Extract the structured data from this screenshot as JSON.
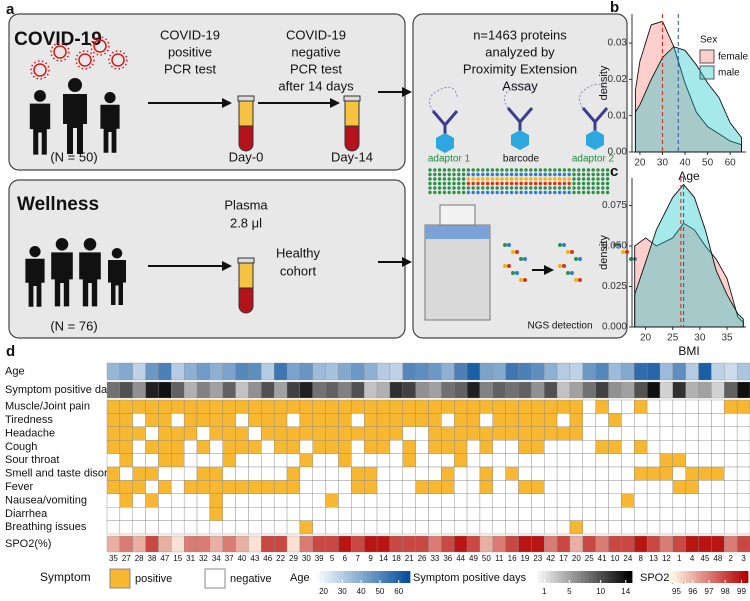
{
  "diagram": {
    "label": "a",
    "covid": {
      "title": "COVID-19",
      "n": "(N = 50)",
      "positive_test": [
        "COVID-19",
        "positive",
        "PCR test"
      ],
      "negative_test": [
        "COVID-19",
        "negative",
        "PCR test",
        "after 14 days"
      ],
      "day0": "Day-0",
      "day14": "Day-14"
    },
    "wellness": {
      "title": "Wellness",
      "n": "(N = 76)",
      "sample": [
        "Plasma",
        "2.8 μl"
      ],
      "cohort": [
        "Healthy",
        "cohort"
      ]
    },
    "assay": {
      "description": [
        "n=1463 proteins",
        "analyzed by",
        "Proximity Extension",
        "Assay"
      ],
      "adaptor_1": "adaptor 1",
      "barcode": "barcode",
      "adaptor_2": "adaptor 2",
      "detection": "NGS detection"
    }
  },
  "chart_data": [
    {
      "type": "density",
      "label": "b",
      "x_label": "Age",
      "y_label": "density",
      "legend_title": "Sex",
      "x": [
        18,
        20,
        25,
        30,
        35,
        40,
        45,
        50,
        55,
        60,
        65
      ],
      "series": [
        {
          "name": "female",
          "color": "#f8766d",
          "mean_color": "#d7301f",
          "mean": 30,
          "values": [
            0.017,
            0.025,
            0.035,
            0.036,
            0.029,
            0.019,
            0.011,
            0.007,
            0.005,
            0.003,
            0.002
          ]
        },
        {
          "name": "male",
          "color": "#00bfc4",
          "mean_color": "#3b5ba5",
          "mean": 37,
          "values": [
            0.011,
            0.013,
            0.02,
            0.026,
            0.029,
            0.028,
            0.024,
            0.019,
            0.015,
            0.008,
            0.004
          ]
        }
      ],
      "xlim": [
        16.5,
        67
      ],
      "xticks": [
        20,
        30,
        40,
        50,
        60
      ],
      "ylim": [
        0,
        0.038
      ],
      "yticks": [
        {
          "value": 0,
          "label": "0.00"
        },
        0.01,
        0.02,
        0.03
      ]
    },
    {
      "type": "density",
      "label": "c",
      "x_label": "BMI",
      "y_label": "density",
      "x": [
        18,
        20,
        22,
        25,
        27,
        29,
        31,
        33,
        35,
        37,
        38
      ],
      "series": [
        {
          "name": "female",
          "color": "#f8766d",
          "mean_color": "#d7301f",
          "mean": 26.5,
          "values": [
            0.05,
            0.055,
            0.05,
            0.055,
            0.064,
            0.06,
            0.05,
            0.042,
            0.03,
            0.006,
            0.003
          ]
        },
        {
          "name": "male",
          "color": "#00bfc4",
          "mean_color": "#3b5ba5",
          "mean": 27,
          "values": [
            0.02,
            0.04,
            0.06,
            0.08,
            0.088,
            0.08,
            0.06,
            0.035,
            0.02,
            0.008,
            0.005
          ]
        }
      ],
      "xlim": [
        17.5,
        38.5
      ],
      "xticks": [
        20,
        25,
        30,
        35
      ],
      "ylim": [
        0,
        0.092
      ],
      "yticks": [
        {
          "value": 0,
          "label": "0.000"
        },
        0.025,
        {
          "value": 0.05,
          "label": "0.050"
        },
        0.075
      ]
    },
    {
      "type": "heatmap",
      "label": "d",
      "categories": [
        "35",
        "27",
        "28",
        "38",
        "47",
        "15",
        "31",
        "32",
        "34",
        "37",
        "40",
        "43",
        "46",
        "22",
        "29",
        "30",
        "39",
        "5",
        "6",
        "7",
        "9",
        "14",
        "18",
        "21",
        "26",
        "33",
        "36",
        "44",
        "49",
        "50",
        "11",
        "16",
        "19",
        "23",
        "42",
        "17",
        "20",
        "25",
        "41",
        "10",
        "24",
        "8",
        "13",
        "12",
        "1",
        "4",
        "45",
        "48",
        "2",
        "3"
      ],
      "scale_rows": [
        {
          "name": "Age",
          "lim": [
            16,
            66
          ],
          "ticks": [
            20,
            30,
            40,
            50,
            60
          ],
          "colors": [
            "#f7fbff",
            "#08519c"
          ],
          "values": [
            36,
            40,
            28,
            45,
            52,
            30,
            38,
            44,
            38,
            42,
            50,
            48,
            30,
            55,
            42,
            46,
            35,
            33,
            40,
            45,
            38,
            30,
            28,
            50,
            48,
            45,
            38,
            52,
            62,
            42,
            40,
            55,
            52,
            48,
            38,
            30,
            28,
            45,
            50,
            35,
            40,
            58,
            60,
            35,
            48,
            30,
            62,
            28,
            25,
            32
          ]
        },
        {
          "name": "Symptom positive days",
          "lim": [
            0,
            15
          ],
          "ticks": [
            1,
            5,
            10,
            14
          ],
          "colors": [
            "#f2f2f2",
            "#000000"
          ],
          "values": [
            8,
            10,
            6,
            13,
            14,
            9,
            4,
            7,
            5,
            9,
            3,
            6,
            10,
            5,
            11,
            13,
            8,
            9,
            7,
            10,
            3,
            4,
            12,
            11,
            6,
            5,
            8,
            9,
            13,
            7,
            9,
            8,
            9,
            6,
            10,
            3,
            5,
            8,
            11,
            6,
            5,
            10,
            14,
            2,
            12,
            4,
            5,
            2,
            9,
            14
          ]
        },
        {
          "name": "SPO2(%)",
          "lim": [
            94.6,
            99.4
          ],
          "ticks": [
            95,
            96,
            97,
            98,
            99
          ],
          "colors": [
            "#fff7e6",
            "#b30000"
          ],
          "values": [
            96,
            97,
            96,
            98,
            96,
            95,
            97,
            97,
            96,
            97,
            96,
            95,
            98,
            98,
            95,
            97,
            98,
            98,
            99,
            98,
            99,
            99,
            98,
            98,
            98,
            97,
            98,
            99,
            98,
            96,
            97,
            98,
            99,
            99,
            97,
            98,
            96,
            98,
            97,
            98,
            98,
            99,
            98,
            97,
            98,
            99,
            99,
            99,
            97,
            98
          ]
        }
      ],
      "symptoms": {
        "title": "Symptom",
        "levels": [
          "negative",
          "positive"
        ],
        "colors": [
          "#ffffff",
          "#f7b731"
        ],
        "series": [
          {
            "name": "Muscle/Joint pain",
            "values": [
              1,
              1,
              1,
              1,
              1,
              1,
              1,
              1,
              1,
              1,
              1,
              1,
              1,
              1,
              1,
              1,
              1,
              1,
              1,
              1,
              1,
              1,
              1,
              1,
              1,
              1,
              1,
              1,
              1,
              1,
              1,
              1,
              1,
              1,
              1,
              1,
              1,
              0,
              1,
              0,
              0,
              1,
              0,
              0,
              0,
              0,
              0,
              0,
              1,
              1
            ]
          },
          {
            "name": "Tiredness",
            "values": [
              1,
              1,
              0,
              1,
              1,
              0,
              1,
              1,
              1,
              1,
              0,
              1,
              1,
              1,
              0,
              1,
              1,
              1,
              1,
              0,
              1,
              1,
              1,
              1,
              1,
              1,
              0,
              1,
              1,
              0,
              1,
              1,
              1,
              1,
              1,
              0,
              1,
              0,
              0,
              1,
              0,
              0,
              0,
              0,
              0,
              0,
              0,
              0,
              0,
              0
            ]
          },
          {
            "name": "Headache",
            "values": [
              1,
              1,
              1,
              0,
              1,
              1,
              1,
              0,
              1,
              1,
              1,
              0,
              1,
              1,
              1,
              1,
              1,
              1,
              1,
              1,
              1,
              1,
              1,
              0,
              0,
              1,
              1,
              1,
              1,
              1,
              1,
              1,
              1,
              1,
              1,
              1,
              1,
              0,
              0,
              0,
              0,
              0,
              0,
              0,
              0,
              0,
              0,
              0,
              0,
              0
            ]
          },
          {
            "name": "Cough",
            "values": [
              1,
              1,
              0,
              1,
              1,
              1,
              0,
              1,
              0,
              1,
              1,
              1,
              0,
              1,
              1,
              0,
              1,
              1,
              1,
              0,
              1,
              1,
              0,
              1,
              0,
              1,
              1,
              1,
              0,
              1,
              0,
              0,
              1,
              1,
              0,
              0,
              0,
              0,
              1,
              1,
              0,
              1,
              0,
              0,
              0,
              0,
              0,
              0,
              0,
              0
            ]
          },
          {
            "name": "Sour throat",
            "values": [
              0,
              1,
              0,
              0,
              1,
              1,
              0,
              0,
              0,
              1,
              0,
              0,
              0,
              0,
              0,
              1,
              0,
              0,
              1,
              0,
              0,
              0,
              0,
              1,
              0,
              0,
              0,
              1,
              0,
              0,
              0,
              0,
              0,
              0,
              0,
              0,
              0,
              0,
              0,
              0,
              0,
              0,
              0,
              1,
              1,
              0,
              0,
              0,
              0,
              0
            ]
          },
          {
            "name": "Smell and taste disorder",
            "values": [
              1,
              0,
              1,
              1,
              0,
              0,
              0,
              1,
              1,
              0,
              0,
              0,
              0,
              0,
              1,
              0,
              0,
              0,
              0,
              1,
              1,
              0,
              0,
              0,
              0,
              0,
              1,
              0,
              0,
              1,
              0,
              1,
              0,
              0,
              0,
              0,
              0,
              0,
              0,
              0,
              0,
              1,
              1,
              1,
              0,
              1,
              1,
              1,
              0,
              0
            ]
          },
          {
            "name": "Fever",
            "values": [
              1,
              1,
              1,
              0,
              1,
              0,
              1,
              1,
              1,
              1,
              1,
              1,
              1,
              1,
              1,
              0,
              0,
              0,
              0,
              1,
              1,
              0,
              0,
              0,
              1,
              1,
              1,
              0,
              0,
              1,
              0,
              0,
              1,
              1,
              0,
              0,
              0,
              0,
              0,
              0,
              0,
              0,
              0,
              0,
              1,
              1,
              0,
              0,
              0,
              0
            ]
          },
          {
            "name": "Nausea/vomiting",
            "values": [
              0,
              1,
              0,
              1,
              0,
              0,
              0,
              0,
              1,
              0,
              0,
              0,
              0,
              0,
              0,
              0,
              0,
              1,
              0,
              0,
              0,
              0,
              0,
              0,
              0,
              0,
              0,
              0,
              0,
              0,
              0,
              0,
              0,
              0,
              0,
              0,
              0,
              0,
              0,
              0,
              1,
              0,
              0,
              0,
              0,
              0,
              0,
              0,
              0,
              0
            ]
          },
          {
            "name": "Diarrhea",
            "values": [
              0,
              0,
              0,
              0,
              0,
              0,
              0,
              0,
              1,
              0,
              0,
              0,
              0,
              0,
              0,
              0,
              0,
              0,
              0,
              0,
              0,
              0,
              0,
              0,
              0,
              0,
              0,
              0,
              0,
              0,
              0,
              0,
              0,
              0,
              0,
              0,
              0,
              0,
              0,
              0,
              0,
              0,
              0,
              0,
              0,
              0,
              0,
              0,
              0,
              0
            ]
          },
          {
            "name": "Breathing issues",
            "values": [
              0,
              0,
              0,
              0,
              0,
              0,
              0,
              0,
              0,
              0,
              0,
              0,
              0,
              0,
              0,
              1,
              0,
              0,
              0,
              0,
              0,
              0,
              0,
              0,
              0,
              0,
              0,
              0,
              0,
              0,
              0,
              0,
              0,
              0,
              0,
              0,
              1,
              0,
              0,
              0,
              0,
              0,
              0,
              0,
              0,
              0,
              0,
              0,
              0,
              0
            ]
          }
        ]
      }
    }
  ]
}
